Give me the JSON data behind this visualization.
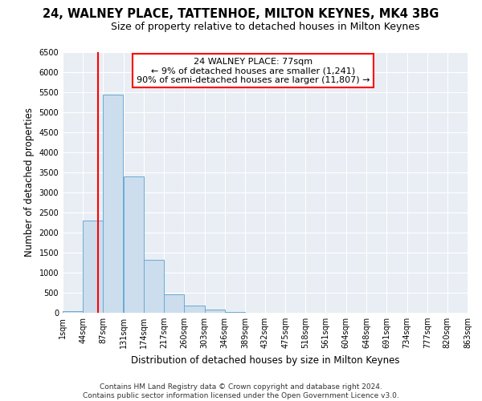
{
  "title": "24, WALNEY PLACE, TATTENHOE, MILTON KEYNES, MK4 3BG",
  "subtitle": "Size of property relative to detached houses in Milton Keynes",
  "xlabel": "Distribution of detached houses by size in Milton Keynes",
  "ylabel": "Number of detached properties",
  "bar_left_edges": [
    1,
    44,
    87,
    131,
    174,
    217,
    260,
    303,
    346,
    389,
    432,
    475,
    518,
    561,
    604,
    648,
    691,
    734,
    777,
    820
  ],
  "bar_heights": [
    50,
    2300,
    5450,
    3400,
    1320,
    470,
    185,
    80,
    30,
    10,
    5,
    3,
    2,
    1,
    1,
    0,
    0,
    0,
    0,
    0
  ],
  "bin_width": 43,
  "bar_color": "#ccdded",
  "bar_edge_color": "#6aaad4",
  "vline_x": 77,
  "vline_color": "red",
  "annotation_title": "24 WALNEY PLACE: 77sqm",
  "annotation_line1": "← 9% of detached houses are smaller (1,241)",
  "annotation_line2": "90% of semi-detached houses are larger (11,807) →",
  "annotation_box_color": "white",
  "annotation_box_edge_color": "red",
  "ylim": [
    0,
    6500
  ],
  "yticks": [
    0,
    500,
    1000,
    1500,
    2000,
    2500,
    3000,
    3500,
    4000,
    4500,
    5000,
    5500,
    6000,
    6500
  ],
  "xtick_labels": [
    "1sqm",
    "44sqm",
    "87sqm",
    "131sqm",
    "174sqm",
    "217sqm",
    "260sqm",
    "303sqm",
    "346sqm",
    "389sqm",
    "432sqm",
    "475sqm",
    "518sqm",
    "561sqm",
    "604sqm",
    "648sqm",
    "691sqm",
    "734sqm",
    "777sqm",
    "820sqm",
    "863sqm"
  ],
  "xtick_positions": [
    1,
    44,
    87,
    131,
    174,
    217,
    260,
    303,
    346,
    389,
    432,
    475,
    518,
    561,
    604,
    648,
    691,
    734,
    777,
    820,
    863
  ],
  "footer_line1": "Contains HM Land Registry data © Crown copyright and database right 2024.",
  "footer_line2": "Contains public sector information licensed under the Open Government Licence v3.0.",
  "bg_color": "#ffffff",
  "plot_bg_color": "#e8eef4",
  "title_fontsize": 10.5,
  "subtitle_fontsize": 9,
  "axis_label_fontsize": 8.5,
  "tick_fontsize": 7,
  "footer_fontsize": 6.5,
  "annotation_fontsize": 8
}
